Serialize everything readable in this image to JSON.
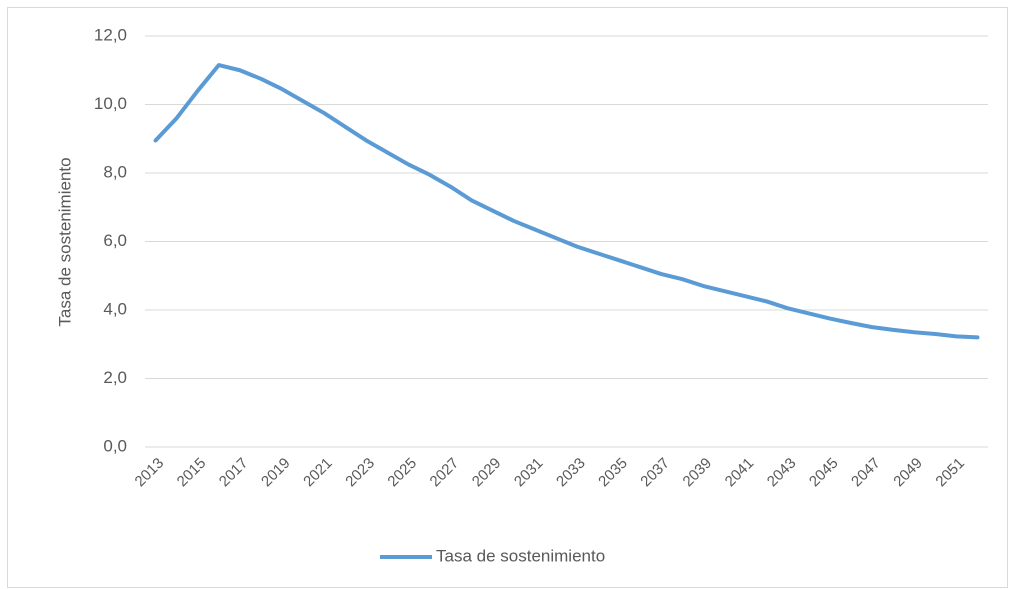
{
  "chart_data": {
    "type": "line",
    "y_label": "Tasa de sostenimiento",
    "categories": [
      "2013",
      null,
      "2015",
      null,
      "2017",
      null,
      "2019",
      null,
      "2021",
      null,
      "2023",
      null,
      "2025",
      null,
      "2027",
      null,
      "2029",
      null,
      "2031",
      null,
      "2033",
      null,
      "2035",
      null,
      "2037",
      null,
      "2039",
      null,
      "2041",
      null,
      "2043",
      null,
      "2045",
      null,
      "2047",
      null,
      "2049",
      null,
      "2051",
      null
    ],
    "series": [
      {
        "name": "Tasa de sostenimiento",
        "color": "#5b9bd5",
        "values": [
          8.95,
          9.6,
          10.4,
          11.15,
          11.0,
          10.75,
          10.45,
          10.1,
          9.75,
          9.35,
          8.95,
          8.6,
          8.25,
          7.95,
          7.6,
          7.2,
          6.9,
          6.6,
          6.35,
          6.1,
          5.85,
          5.65,
          5.45,
          5.25,
          5.05,
          4.9,
          4.7,
          4.55,
          4.4,
          4.25,
          4.05,
          3.9,
          3.75,
          3.62,
          3.5,
          3.42,
          3.35,
          3.3,
          3.23,
          3.2
        ]
      }
    ],
    "ylim": [
      0,
      12
    ],
    "yticks": [
      {
        "value": 0,
        "label": "0,0"
      },
      {
        "value": 2,
        "label": "2,0"
      },
      {
        "value": 4,
        "label": "4,0"
      },
      {
        "value": 6,
        "label": "6,0"
      },
      {
        "value": 8,
        "label": "8,0"
      },
      {
        "value": 10,
        "label": "10,0"
      },
      {
        "value": 12,
        "label": "12,0"
      }
    ],
    "grid": true,
    "legend": "bottom"
  }
}
